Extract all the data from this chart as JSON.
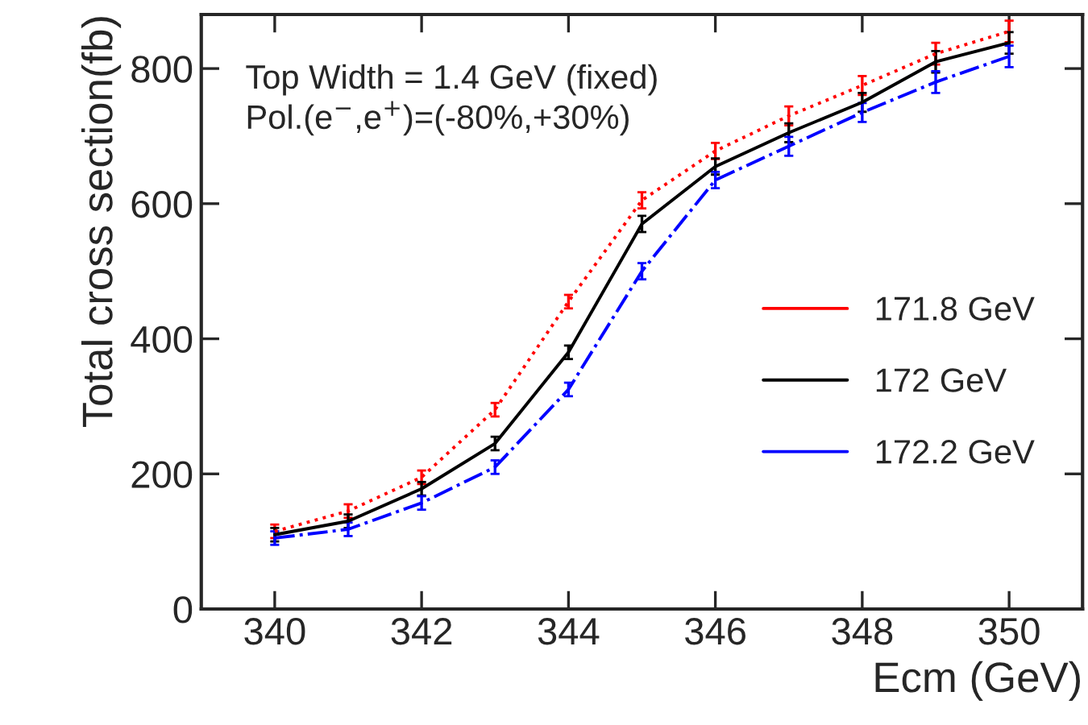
{
  "chart_data": {
    "type": "line",
    "xlabel": "Ecm (GeV)",
    "ylabel": "Total cross section(fb)",
    "x": [
      340,
      341,
      342,
      343,
      344,
      345,
      346,
      347,
      348,
      349,
      350
    ],
    "series": [
      {
        "name": "171.8 GeV",
        "color": "#ff0000",
        "line_style": "dotted",
        "values": [
          115,
          145,
          195,
          295,
          455,
          605,
          678,
          730,
          775,
          822,
          855
        ],
        "errors": [
          10,
          10,
          10,
          10,
          10,
          12,
          12,
          14,
          14,
          16,
          16
        ]
      },
      {
        "name": "172 GeV",
        "color": "#000000",
        "line_style": "solid",
        "values": [
          110,
          130,
          178,
          245,
          380,
          570,
          655,
          705,
          750,
          810,
          838
        ],
        "errors": [
          10,
          10,
          10,
          10,
          10,
          12,
          12,
          14,
          14,
          16,
          16
        ]
      },
      {
        "name": "172.2 GeV",
        "color": "#0000ff",
        "line_style": "dashdot",
        "values": [
          105,
          118,
          157,
          210,
          325,
          500,
          635,
          685,
          735,
          780,
          818
        ],
        "errors": [
          10,
          10,
          10,
          10,
          10,
          12,
          12,
          14,
          14,
          16,
          16
        ]
      }
    ],
    "xlim": [
      339,
      351
    ],
    "ylim": [
      0,
      880
    ],
    "xticks": [
      340,
      342,
      344,
      346,
      348,
      350
    ],
    "yticks": [
      0,
      200,
      400,
      600,
      800
    ],
    "annotations": [
      "Top Width = 1.4 GeV (fixed)",
      "Pol.(e$^{−}$,e$^{+}$)=(-80%,+30%)"
    ],
    "legend": "right",
    "grid": false,
    "marker": "none"
  }
}
